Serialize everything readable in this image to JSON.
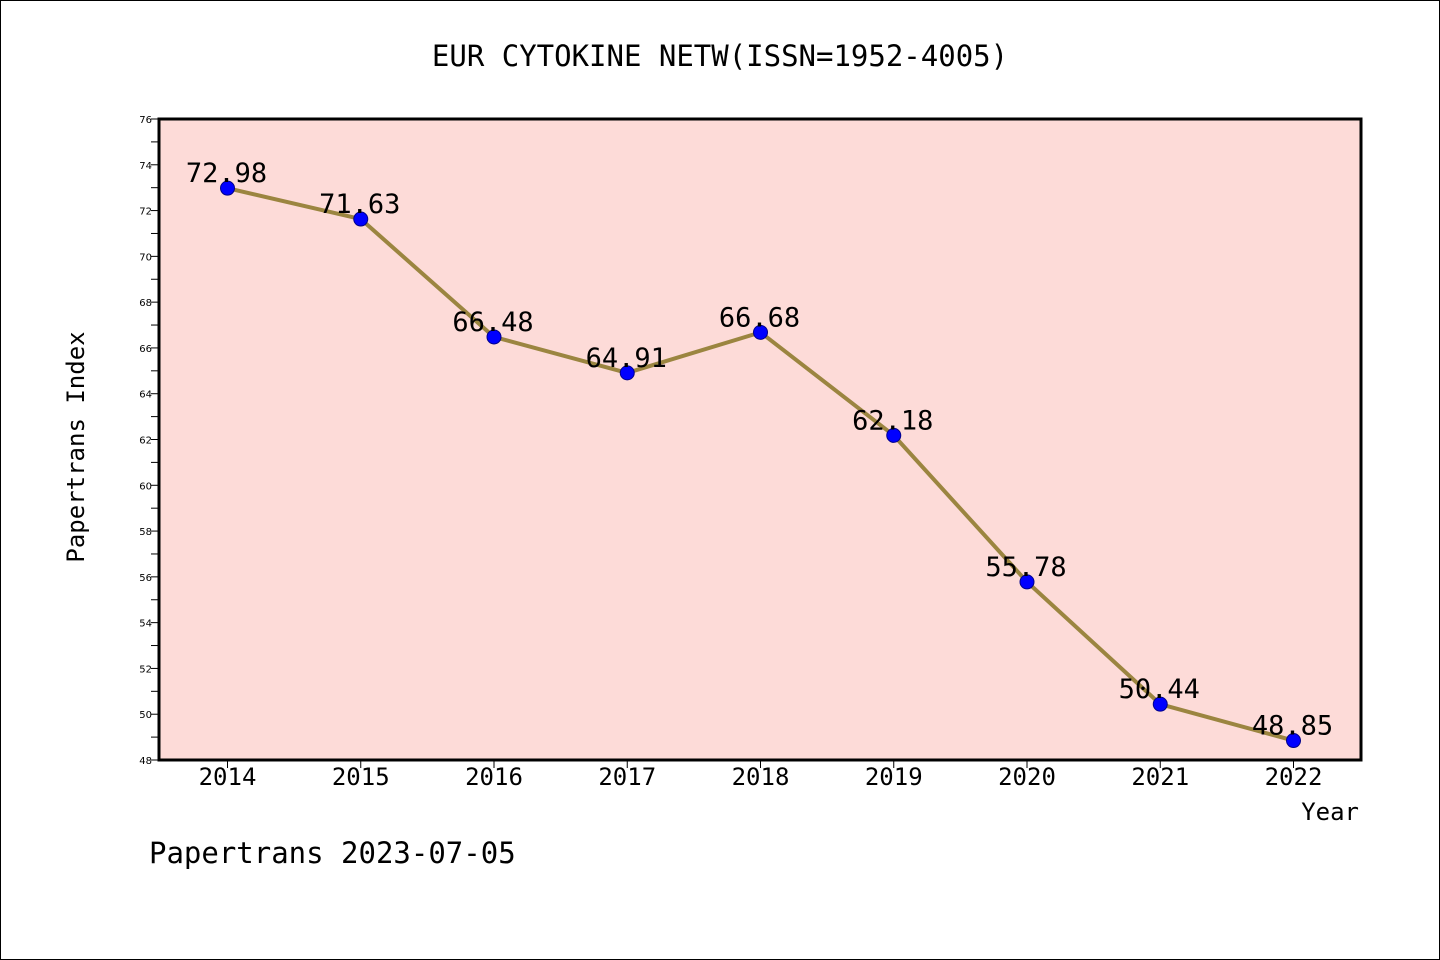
{
  "chart_data": {
    "type": "line",
    "title": "EUR CYTOKINE NETW(ISSN=1952-4005)",
    "xlabel": "Year",
    "ylabel": "Papertrans Index",
    "categories": [
      "2014",
      "2015",
      "2016",
      "2017",
      "2018",
      "2019",
      "2020",
      "2021",
      "2022"
    ],
    "series": [
      {
        "values": [
          72.98,
          71.63,
          66.48,
          64.91,
          66.68,
          62.18,
          55.78,
          50.44,
          48.85
        ],
        "labels": [
          "72.98",
          "71.63",
          "66.48",
          "64.91",
          "66.68",
          "62.18",
          "55.78",
          "50.44",
          "48.85"
        ]
      }
    ],
    "ylim": [
      48,
      76
    ],
    "y_ticks": [
      "48",
      "50",
      "52",
      "54",
      "56",
      "58",
      "60",
      "62",
      "64",
      "66",
      "68",
      "70",
      "72",
      "74",
      "76"
    ],
    "grid": false,
    "colors": {
      "plot_background": "#fddbd8",
      "line": "#9b8540",
      "marker": "#0000ff",
      "marker_edge": "#00008b"
    }
  },
  "footer": "Papertrans 2023-07-05"
}
